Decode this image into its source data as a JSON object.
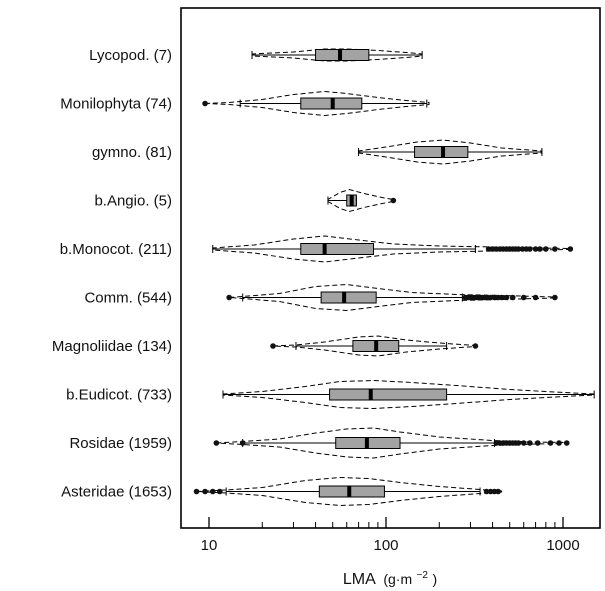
{
  "chart_data": {
    "type": "violin-box",
    "xscale": "log",
    "xlim": [
      6.8,
      1600
    ],
    "xlabel": {
      "main": "LMA",
      "unit": "(g·m",
      "exp": "−2",
      "close": ")"
    },
    "xticks": [
      {
        "value": 10,
        "label": "10"
      },
      {
        "value": 100,
        "label": "100"
      },
      {
        "value": 1000,
        "label": "1000"
      }
    ],
    "minor_ticks": [
      20,
      30,
      40,
      50,
      60,
      70,
      80,
      90,
      200,
      300,
      400,
      500,
      600,
      700,
      800,
      900
    ],
    "colors": {
      "box": "#a3a3a3",
      "median": "#000000",
      "line": "#000000"
    },
    "groups": [
      {
        "label": "Lycopod. (7)",
        "n": 7,
        "box": {
          "q1": 40,
          "median": 55,
          "q3": 80
        },
        "whisker": [
          17.5,
          160
        ],
        "violin": [
          [
            17.5,
            1
          ],
          [
            30,
            3
          ],
          [
            45,
            6
          ],
          [
            60,
            6
          ],
          [
            90,
            4.5
          ],
          [
            130,
            2.5
          ],
          [
            160,
            1
          ]
        ],
        "outliers": []
      },
      {
        "label": "Monilophyta (74)",
        "n": 74,
        "box": {
          "q1": 33,
          "median": 50,
          "q3": 73
        },
        "whisker": [
          15,
          170
        ],
        "violin": [
          [
            9.5,
            0
          ],
          [
            13,
            1
          ],
          [
            20,
            4
          ],
          [
            30,
            9
          ],
          [
            45,
            12
          ],
          [
            60,
            10
          ],
          [
            90,
            6
          ],
          [
            130,
            3
          ],
          [
            175,
            1
          ]
        ],
        "outliers": [
          9.5
        ]
      },
      {
        "label": "gymno. (81)",
        "n": 81,
        "box": {
          "q1": 145,
          "median": 210,
          "q3": 290
        },
        "whisker": [
          70,
          760
        ],
        "violin": [
          [
            70,
            1
          ],
          [
            100,
            5
          ],
          [
            150,
            10
          ],
          [
            210,
            12
          ],
          [
            300,
            9
          ],
          [
            450,
            4
          ],
          [
            760,
            1
          ]
        ],
        "outliers": []
      },
      {
        "label": "b.Angio. (5)",
        "n": 5,
        "box": {
          "q1": 60,
          "median": 64,
          "q3": 68
        },
        "whisker": [
          47,
          68
        ],
        "violin": [
          [
            47,
            1
          ],
          [
            55,
            8
          ],
          [
            62,
            11
          ],
          [
            75,
            7
          ],
          [
            95,
            3
          ],
          [
            110,
            1
          ]
        ],
        "outliers": [
          110
        ]
      },
      {
        "label": "b.Monocot. (211)",
        "n": 211,
        "box": {
          "q1": 33,
          "median": 45,
          "q3": 85
        },
        "whisker": [
          10.5,
          320
        ],
        "violin": [
          [
            10.5,
            1
          ],
          [
            18,
            4
          ],
          [
            30,
            10
          ],
          [
            45,
            13
          ],
          [
            70,
            9
          ],
          [
            110,
            5
          ],
          [
            200,
            3
          ],
          [
            400,
            2
          ],
          [
            700,
            1
          ],
          [
            1100,
            0.5
          ]
        ],
        "outliers": [
          380,
          400,
          420,
          440,
          460,
          480,
          500,
          520,
          540,
          560,
          590,
          620,
          650,
          700,
          740,
          800,
          900,
          1100
        ]
      },
      {
        "label": "Comm. (544)",
        "n": 544,
        "box": {
          "q1": 43,
          "median": 58,
          "q3": 88
        },
        "whisker": [
          15.5,
          270
        ],
        "violin": [
          [
            13,
            0
          ],
          [
            15.5,
            1
          ],
          [
            25,
            4
          ],
          [
            40,
            11
          ],
          [
            60,
            13
          ],
          [
            90,
            9
          ],
          [
            140,
            5
          ],
          [
            250,
            3
          ],
          [
            450,
            2
          ],
          [
            900,
            0.5
          ]
        ],
        "outliers": [
          13,
          280,
          290,
          300,
          310,
          320,
          330,
          340,
          350,
          360,
          370,
          390,
          410,
          430,
          450,
          480,
          520,
          600,
          700,
          900
        ]
      },
      {
        "label": "Magnoliidae (134)",
        "n": 134,
        "box": {
          "q1": 65,
          "median": 88,
          "q3": 118
        },
        "whisker": [
          31,
          220
        ],
        "violin": [
          [
            23,
            0
          ],
          [
            31,
            1
          ],
          [
            45,
            4
          ],
          [
            70,
            9
          ],
          [
            90,
            10
          ],
          [
            130,
            6
          ],
          [
            200,
            3
          ],
          [
            320,
            0.5
          ]
        ],
        "outliers": [
          23,
          320
        ]
      },
      {
        "label": "b.Eudicot. (733)",
        "n": 733,
        "box": {
          "q1": 48,
          "median": 82,
          "q3": 220
        },
        "whisker": [
          12,
          1500
        ],
        "violin": [
          [
            12,
            0.5
          ],
          [
            20,
            3
          ],
          [
            35,
            8
          ],
          [
            55,
            13
          ],
          [
            85,
            14
          ],
          [
            140,
            12
          ],
          [
            250,
            9
          ],
          [
            500,
            5
          ],
          [
            900,
            2.5
          ],
          [
            1500,
            0.5
          ]
        ],
        "outliers": []
      },
      {
        "label": "Rosidae (1959)",
        "n": 1959,
        "box": {
          "q1": 52,
          "median": 78,
          "q3": 120
        },
        "whisker": [
          15.5,
          410
        ],
        "violin": [
          [
            11,
            0
          ],
          [
            15.5,
            1.5
          ],
          [
            25,
            4
          ],
          [
            40,
            10
          ],
          [
            60,
            14
          ],
          [
            85,
            15
          ],
          [
            120,
            11
          ],
          [
            200,
            6
          ],
          [
            400,
            2.5
          ],
          [
            700,
            1
          ],
          [
            1000,
            0.5
          ]
        ],
        "outliers": [
          11,
          15.5,
          420,
          440,
          460,
          480,
          500,
          520,
          540,
          560,
          600,
          650,
          720,
          850,
          950,
          1050
        ]
      },
      {
        "label": "Asteridae (1653)",
        "n": 1653,
        "box": {
          "q1": 42,
          "median": 62,
          "q3": 98
        },
        "whisker": [
          12.5,
          340
        ],
        "violin": [
          [
            8.5,
            0
          ],
          [
            12.5,
            1.5
          ],
          [
            20,
            4
          ],
          [
            35,
            11
          ],
          [
            55,
            14
          ],
          [
            80,
            13
          ],
          [
            120,
            9
          ],
          [
            200,
            5
          ],
          [
            340,
            2
          ],
          [
            450,
            0.5
          ]
        ],
        "outliers": [
          8.5,
          9.5,
          10.5,
          11.5,
          370,
          390,
          410,
          430
        ]
      }
    ]
  }
}
